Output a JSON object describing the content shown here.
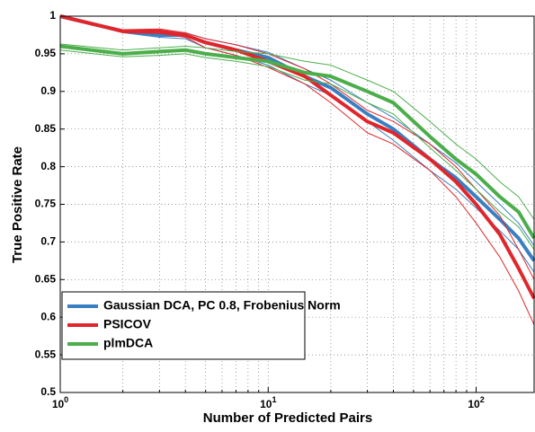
{
  "chart_data": {
    "type": "line",
    "xlabel": "Number of Predicted Pairs",
    "ylabel": "True Positive Rate",
    "x": [
      1,
      2,
      3,
      4,
      5,
      7,
      10,
      15,
      20,
      30,
      40,
      60,
      80,
      100,
      130,
      160,
      190
    ],
    "series": [
      {
        "name": "Gaussian DCA, PC 0.8, Frobenius Norm",
        "color": "#3a7fc1",
        "values": [
          1,
          0.98,
          0.975,
          0.975,
          0.965,
          0.955,
          0.945,
          0.92,
          0.905,
          0.87,
          0.85,
          0.81,
          0.785,
          0.76,
          0.73,
          0.705,
          0.675
        ],
        "upper": [
          1,
          0.982,
          0.978,
          0.978,
          0.97,
          0.962,
          0.952,
          0.93,
          0.915,
          0.885,
          0.865,
          0.83,
          0.805,
          0.78,
          0.75,
          0.725,
          0.695
        ],
        "lower": [
          1,
          0.978,
          0.972,
          0.97,
          0.958,
          0.948,
          0.935,
          0.91,
          0.895,
          0.86,
          0.835,
          0.795,
          0.77,
          0.745,
          0.715,
          0.69,
          0.66
        ]
      },
      {
        "name": "PSICOV",
        "color": "#e0262b",
        "values": [
          1,
          0.98,
          0.98,
          0.975,
          0.965,
          0.955,
          0.94,
          0.92,
          0.895,
          0.86,
          0.845,
          0.81,
          0.78,
          0.75,
          0.71,
          0.665,
          0.625
        ],
        "upper": [
          1,
          0.982,
          0.983,
          0.978,
          0.97,
          0.962,
          0.95,
          0.93,
          0.91,
          0.875,
          0.86,
          0.83,
          0.8,
          0.77,
          0.735,
          0.69,
          0.65
        ],
        "lower": [
          1,
          0.978,
          0.977,
          0.972,
          0.958,
          0.948,
          0.932,
          0.91,
          0.885,
          0.845,
          0.83,
          0.795,
          0.76,
          0.725,
          0.68,
          0.635,
          0.59
        ]
      },
      {
        "name": "plmDCA",
        "color": "#4cae4b",
        "values": [
          0.96,
          0.95,
          0.953,
          0.955,
          0.95,
          0.945,
          0.94,
          0.925,
          0.92,
          0.9,
          0.885,
          0.84,
          0.81,
          0.79,
          0.76,
          0.74,
          0.705
        ],
        "upper": [
          0.963,
          0.955,
          0.958,
          0.96,
          0.958,
          0.953,
          0.95,
          0.94,
          0.935,
          0.915,
          0.9,
          0.86,
          0.83,
          0.81,
          0.78,
          0.76,
          0.73
        ],
        "lower": [
          0.955,
          0.946,
          0.948,
          0.95,
          0.945,
          0.94,
          0.933,
          0.915,
          0.91,
          0.885,
          0.87,
          0.825,
          0.795,
          0.77,
          0.74,
          0.72,
          0.69
        ]
      }
    ],
    "xlog": true,
    "xlim": [
      1,
      190
    ],
    "xticks": [
      {
        "value": 1,
        "label": "10",
        "exponent": "0"
      },
      {
        "value": 10,
        "label": "10",
        "exponent": "1"
      },
      {
        "value": 100,
        "label": "10",
        "exponent": "2"
      }
    ],
    "xminorticks": [
      2,
      3,
      4,
      5,
      6,
      7,
      8,
      9,
      20,
      30,
      40,
      50,
      60,
      70,
      80,
      90
    ],
    "ylim": [
      0.5,
      1
    ],
    "yticks": [
      0.5,
      0.55,
      0.6,
      0.65,
      0.7,
      0.75,
      0.8,
      0.85,
      0.9,
      0.95,
      1
    ],
    "grid": true,
    "legend": "lower left"
  }
}
